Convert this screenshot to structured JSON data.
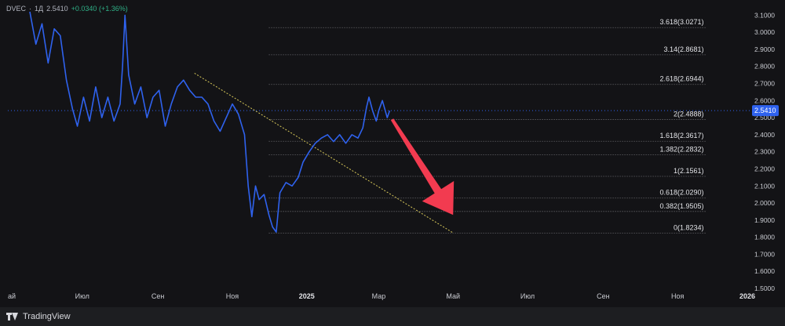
{
  "header": {
    "symbol": "DVEC",
    "interval": "1Д",
    "last": "2.5410",
    "change": "+0.0340 (+1.36%)"
  },
  "branding": {
    "name": "TradingView",
    "logo_icon": "tradingview-logo-icon"
  },
  "colors": {
    "background": "#131316",
    "price_line": "#2f62ee",
    "fib_line": "#8a8a8f",
    "trend_line": "#d9c95a",
    "arrow": "#f23b50",
    "price_badge": "#2f62ee",
    "axis_text": "#c9cbd1"
  },
  "price_badge": {
    "label": "2.5410",
    "value": 2.541
  },
  "chart_data": {
    "type": "line",
    "title": "",
    "xlabel": "",
    "ylabel": "",
    "x_range": [
      "2024-05-01",
      "2026-01-01"
    ],
    "ylim": [
      1.5,
      3.12
    ],
    "grid": false,
    "x_ticks": [
      {
        "label": "ай",
        "date": "2024-05-01"
      },
      {
        "label": "Июл",
        "date": "2024-07-01"
      },
      {
        "label": "Сен",
        "date": "2024-09-01"
      },
      {
        "label": "Ноя",
        "date": "2024-11-01"
      },
      {
        "label": "2025",
        "date": "2025-01-01"
      },
      {
        "label": "Мар",
        "date": "2025-03-01"
      },
      {
        "label": "Май",
        "date": "2025-05-01"
      },
      {
        "label": "Июл",
        "date": "2025-07-01"
      },
      {
        "label": "Сен",
        "date": "2025-09-01"
      },
      {
        "label": "Ноя",
        "date": "2025-11-01"
      },
      {
        "label": "2026",
        "date": "2026-01-01"
      }
    ],
    "y_ticks": [
      "3.1000",
      "3.0000",
      "2.9000",
      "2.8000",
      "2.7000",
      "2.6000",
      "2.5000",
      "2.4000",
      "2.3000",
      "2.2000",
      "2.1000",
      "2.0000",
      "1.9000",
      "1.8000",
      "1.7000",
      "1.6000",
      "1.5000"
    ],
    "series": [
      {
        "type": "line",
        "points": [
          [
            "2024-05-19",
            3.12
          ],
          [
            "2024-05-24",
            2.93
          ],
          [
            "2024-05-29",
            3.05
          ],
          [
            "2024-06-03",
            2.82
          ],
          [
            "2024-06-08",
            3.02
          ],
          [
            "2024-06-13",
            2.98
          ],
          [
            "2024-06-18",
            2.72
          ],
          [
            "2024-06-23",
            2.55
          ],
          [
            "2024-06-27",
            2.45
          ],
          [
            "2024-07-02",
            2.62
          ],
          [
            "2024-07-07",
            2.48
          ],
          [
            "2024-07-12",
            2.68
          ],
          [
            "2024-07-17",
            2.5
          ],
          [
            "2024-07-22",
            2.62
          ],
          [
            "2024-07-27",
            2.48
          ],
          [
            "2024-08-01",
            2.58
          ],
          [
            "2024-08-03",
            2.8
          ],
          [
            "2024-08-05",
            3.1
          ],
          [
            "2024-08-08",
            2.75
          ],
          [
            "2024-08-13",
            2.58
          ],
          [
            "2024-08-18",
            2.68
          ],
          [
            "2024-08-23",
            2.5
          ],
          [
            "2024-08-28",
            2.62
          ],
          [
            "2024-09-02",
            2.66
          ],
          [
            "2024-09-07",
            2.45
          ],
          [
            "2024-09-12",
            2.58
          ],
          [
            "2024-09-17",
            2.68
          ],
          [
            "2024-09-22",
            2.72
          ],
          [
            "2024-09-27",
            2.66
          ],
          [
            "2024-10-02",
            2.62
          ],
          [
            "2024-10-07",
            2.62
          ],
          [
            "2024-10-12",
            2.58
          ],
          [
            "2024-10-17",
            2.48
          ],
          [
            "2024-10-22",
            2.42
          ],
          [
            "2024-10-27",
            2.5
          ],
          [
            "2024-11-01",
            2.58
          ],
          [
            "2024-11-06",
            2.52
          ],
          [
            "2024-11-11",
            2.4
          ],
          [
            "2024-11-14",
            2.1
          ],
          [
            "2024-11-17",
            1.92
          ],
          [
            "2024-11-20",
            2.1
          ],
          [
            "2024-11-23",
            2.02
          ],
          [
            "2024-11-27",
            2.05
          ],
          [
            "2024-12-01",
            1.93
          ],
          [
            "2024-12-04",
            1.86
          ],
          [
            "2024-12-07",
            1.83
          ],
          [
            "2024-12-10",
            2.06
          ],
          [
            "2024-12-15",
            2.12
          ],
          [
            "2024-12-20",
            2.1
          ],
          [
            "2024-12-25",
            2.15
          ],
          [
            "2024-12-29",
            2.24
          ],
          [
            "2025-01-03",
            2.3
          ],
          [
            "2025-01-08",
            2.35
          ],
          [
            "2025-01-13",
            2.38
          ],
          [
            "2025-01-18",
            2.4
          ],
          [
            "2025-01-23",
            2.36
          ],
          [
            "2025-01-28",
            2.4
          ],
          [
            "2025-02-02",
            2.35
          ],
          [
            "2025-02-07",
            2.4
          ],
          [
            "2025-02-12",
            2.38
          ],
          [
            "2025-02-16",
            2.44
          ],
          [
            "2025-02-19",
            2.56
          ],
          [
            "2025-02-21",
            2.62
          ],
          [
            "2025-02-24",
            2.54
          ],
          [
            "2025-02-27",
            2.48
          ],
          [
            "2025-03-01",
            2.54
          ],
          [
            "2025-03-04",
            2.6
          ],
          [
            "2025-03-06",
            2.55
          ],
          [
            "2025-03-08",
            2.5
          ],
          [
            "2025-03-10",
            2.541
          ]
        ]
      }
    ],
    "fib_levels": [
      {
        "ratio": "0",
        "price": 1.8234,
        "label": "0(1.8234)"
      },
      {
        "ratio": "0.382",
        "price": 1.9505,
        "label": "0.382(1.9505)"
      },
      {
        "ratio": "0.618",
        "price": 2.029,
        "label": "0.618(2.0290)"
      },
      {
        "ratio": "1",
        "price": 2.1561,
        "label": "1(2.1561)"
      },
      {
        "ratio": "1.382",
        "price": 2.2832,
        "label": "1.382(2.2832)"
      },
      {
        "ratio": "1.618",
        "price": 2.3617,
        "label": "1.618(2.3617)"
      },
      {
        "ratio": "2",
        "price": 2.4888,
        "label": "2(2.4888)"
      },
      {
        "ratio": "2.618",
        "price": 2.6944,
        "label": "2.618(2.6944)"
      },
      {
        "ratio": "3.14",
        "price": 2.8681,
        "label": "3.14(2.8681)"
      },
      {
        "ratio": "3.618",
        "price": 3.0271,
        "label": "3.618(3.0271)"
      }
    ],
    "fib_x_range": [
      "2024-12-01",
      "2025-11-25"
    ],
    "trendline": {
      "from": [
        "2024-10-01",
        2.76
      ],
      "to": [
        "2025-05-01",
        1.825
      ]
    },
    "arrow": {
      "from": [
        "2025-03-12",
        2.49
      ],
      "to": [
        "2025-05-01",
        1.93
      ],
      "direction": "down"
    }
  }
}
